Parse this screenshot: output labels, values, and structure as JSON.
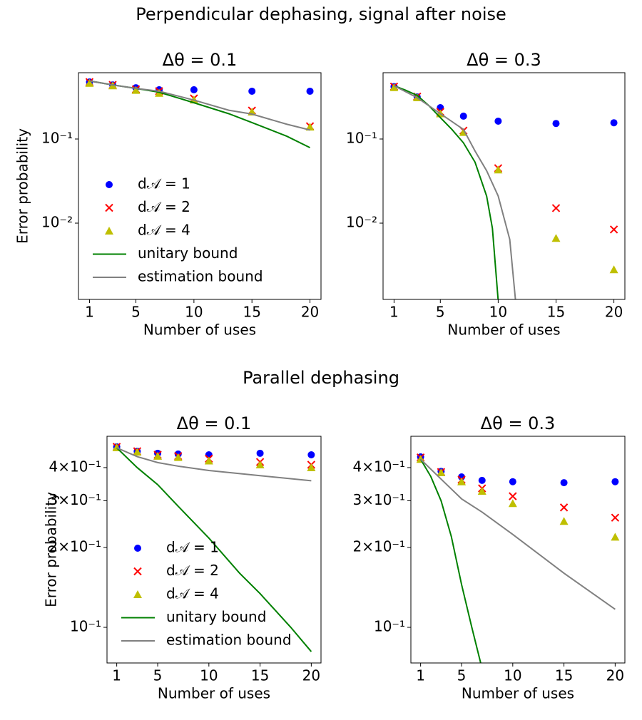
{
  "titles": [
    "Perpendicular dephasing, signal after noise",
    "Parallel dephasing"
  ],
  "chart_data": [
    {
      "type": "line",
      "title": "Δθ = 0.1",
      "xlabel": "Number of uses",
      "ylabel": "Error probability",
      "x": [
        1,
        3,
        5,
        7,
        10,
        15,
        20
      ],
      "xlim": [
        0.05,
        20.95
      ],
      "xticks": [
        1,
        5,
        10,
        15,
        20
      ],
      "ylim": [
        0.00124,
        0.614
      ],
      "log_y": true,
      "yticks": [
        {
          "value": 0.01,
          "label": "10⁻²"
        },
        {
          "value": 0.1,
          "label": "10⁻¹"
        }
      ],
      "legend": "lower left",
      "series": [
        {
          "name": "d𝒜 = 1",
          "color": "#0000ff",
          "marker": "o",
          "values": [
            0.476,
            0.44,
            0.407,
            0.385,
            0.385,
            0.37,
            0.37
          ]
        },
        {
          "name": "d𝒜 = 2",
          "color": "#ff0000",
          "marker": "x",
          "values": [
            0.476,
            0.44,
            0.39,
            0.37,
            0.304,
            0.218,
            0.142
          ]
        },
        {
          "name": "d𝒜 = 4",
          "color": "#bfbf00",
          "marker": "^",
          "values": [
            0.46,
            0.43,
            0.38,
            0.35,
            0.292,
            0.21,
            0.139
          ]
        },
        {
          "name": "unitary bound",
          "color": "#008000",
          "x": [
            1,
            3,
            5,
            7,
            10,
            13,
            15,
            18,
            20
          ],
          "values": [
            0.49,
            0.44,
            0.4,
            0.36,
            0.27,
            0.2,
            0.157,
            0.108,
            0.079
          ]
        },
        {
          "name": "estimation bound",
          "color": "#808080",
          "x": [
            1,
            3,
            5,
            7,
            10,
            13,
            15,
            18,
            20
          ],
          "values": [
            0.49,
            0.44,
            0.4,
            0.37,
            0.29,
            0.22,
            0.198,
            0.15,
            0.128
          ]
        }
      ]
    },
    {
      "type": "line",
      "title": "Δθ = 0.3",
      "xlabel": "Number of uses",
      "x": [
        1,
        3,
        5,
        7,
        10,
        15,
        20
      ],
      "xlim": [
        0.05,
        20.95
      ],
      "xticks": [
        1,
        5,
        10,
        15,
        20
      ],
      "ylim": [
        0.00124,
        0.614
      ],
      "log_y": true,
      "yticks": [
        {
          "value": 0.01,
          "label": "10⁻²"
        },
        {
          "value": 0.1,
          "label": "10⁻¹"
        }
      ],
      "series": [
        {
          "color": "#0000ff",
          "marker": "o",
          "values": [
            0.42,
            0.316,
            0.236,
            0.187,
            0.163,
            0.153,
            0.156
          ]
        },
        {
          "color": "#ff0000",
          "marker": "x",
          "values": [
            0.42,
            0.32,
            0.21,
            0.126,
            0.045,
            0.0151,
            0.0084
          ]
        },
        {
          "color": "#bfbf00",
          "marker": "^",
          "values": [
            0.41,
            0.31,
            0.2,
            0.12,
            0.043,
            0.0066,
            0.0028
          ]
        },
        {
          "color": "#008000",
          "x": [
            1,
            2,
            3,
            4,
            5,
            6,
            7,
            8,
            9,
            9.5,
            10
          ],
          "values": [
            0.43,
            0.38,
            0.33,
            0.25,
            0.18,
            0.13,
            0.09,
            0.053,
            0.021,
            0.0087,
            0.0012
          ]
        },
        {
          "color": "#808080",
          "x": [
            1,
            3,
            5,
            7,
            8,
            9,
            10,
            11,
            11.5
          ],
          "values": [
            0.43,
            0.31,
            0.2,
            0.13,
            0.072,
            0.042,
            0.021,
            0.0064,
            0.0012
          ]
        }
      ]
    },
    {
      "type": "line",
      "title": "Δθ = 0.1",
      "xlabel": "Number of uses",
      "ylabel": "Error probability",
      "x": [
        1,
        3,
        5,
        7,
        10,
        15,
        20
      ],
      "xlim": [
        0.05,
        20.95
      ],
      "xticks": [
        1,
        5,
        10,
        15,
        20
      ],
      "ylim": [
        0.0734,
        0.525
      ],
      "log_y": true,
      "yticks": [
        {
          "value": 0.1,
          "label": "10⁻¹"
        },
        {
          "value": 0.2,
          "label": "2×10⁻¹"
        },
        {
          "value": 0.3,
          "label": "3×10⁻¹"
        },
        {
          "value": 0.4,
          "label": "4×10⁻¹"
        }
      ],
      "legend": "lower left",
      "series": [
        {
          "name": "d𝒜 = 1",
          "color": "#0000ff",
          "marker": "o",
          "values": [
            0.479,
            0.461,
            0.453,
            0.45,
            0.447,
            0.453,
            0.447
          ]
        },
        {
          "name": "d𝒜 = 2",
          "color": "#ff0000",
          "marker": "x",
          "values": [
            0.479,
            0.461,
            0.447,
            0.442,
            0.432,
            0.42,
            0.41
          ]
        },
        {
          "name": "d𝒜 = 4",
          "color": "#bfbf00",
          "marker": "^",
          "values": [
            0.476,
            0.458,
            0.442,
            0.437,
            0.424,
            0.41,
            0.4
          ]
        },
        {
          "name": "unitary bound",
          "color": "#008000",
          "x": [
            1,
            3,
            5,
            7,
            10,
            13,
            15,
            18,
            20
          ],
          "values": [
            0.475,
            0.4,
            0.345,
            0.286,
            0.217,
            0.16,
            0.134,
            0.1,
            0.081
          ]
        },
        {
          "name": "estimation bound",
          "color": "#808080",
          "x": [
            1,
            3,
            5,
            7,
            10,
            15,
            20
          ],
          "values": [
            0.475,
            0.44,
            0.418,
            0.405,
            0.39,
            0.373,
            0.357
          ]
        }
      ]
    },
    {
      "type": "line",
      "title": "Δθ = 0.3",
      "xlabel": "Number of uses",
      "x": [
        1,
        3,
        5,
        7,
        10,
        15,
        20
      ],
      "xlim": [
        0.05,
        20.95
      ],
      "xticks": [
        1,
        5,
        10,
        15,
        20
      ],
      "ylim": [
        0.0734,
        0.525
      ],
      "log_y": true,
      "yticks": [
        {
          "value": 0.1,
          "label": "10⁻¹"
        },
        {
          "value": 0.2,
          "label": "2×10⁻¹"
        },
        {
          "value": 0.3,
          "label": "3×10⁻¹"
        },
        {
          "value": 0.4,
          "label": "4×10⁻¹"
        }
      ],
      "series": [
        {
          "color": "#0000ff",
          "marker": "o",
          "values": [
            0.439,
            0.387,
            0.369,
            0.358,
            0.354,
            0.351,
            0.354
          ]
        },
        {
          "color": "#ff0000",
          "marker": "x",
          "values": [
            0.437,
            0.385,
            0.36,
            0.334,
            0.312,
            0.283,
            0.259
          ]
        },
        {
          "color": "#bfbf00",
          "marker": "^",
          "values": [
            0.43,
            0.383,
            0.354,
            0.326,
            0.293,
            0.251,
            0.219
          ]
        },
        {
          "color": "#008000",
          "x": [
            1,
            2,
            3,
            4,
            5,
            6,
            7
          ],
          "values": [
            0.43,
            0.37,
            0.3,
            0.22,
            0.145,
            0.1,
            0.07
          ]
        },
        {
          "color": "#808080",
          "x": [
            1,
            3,
            5,
            7,
            10,
            15,
            20
          ],
          "values": [
            0.43,
            0.362,
            0.305,
            0.272,
            0.224,
            0.16,
            0.117
          ]
        }
      ]
    }
  ]
}
